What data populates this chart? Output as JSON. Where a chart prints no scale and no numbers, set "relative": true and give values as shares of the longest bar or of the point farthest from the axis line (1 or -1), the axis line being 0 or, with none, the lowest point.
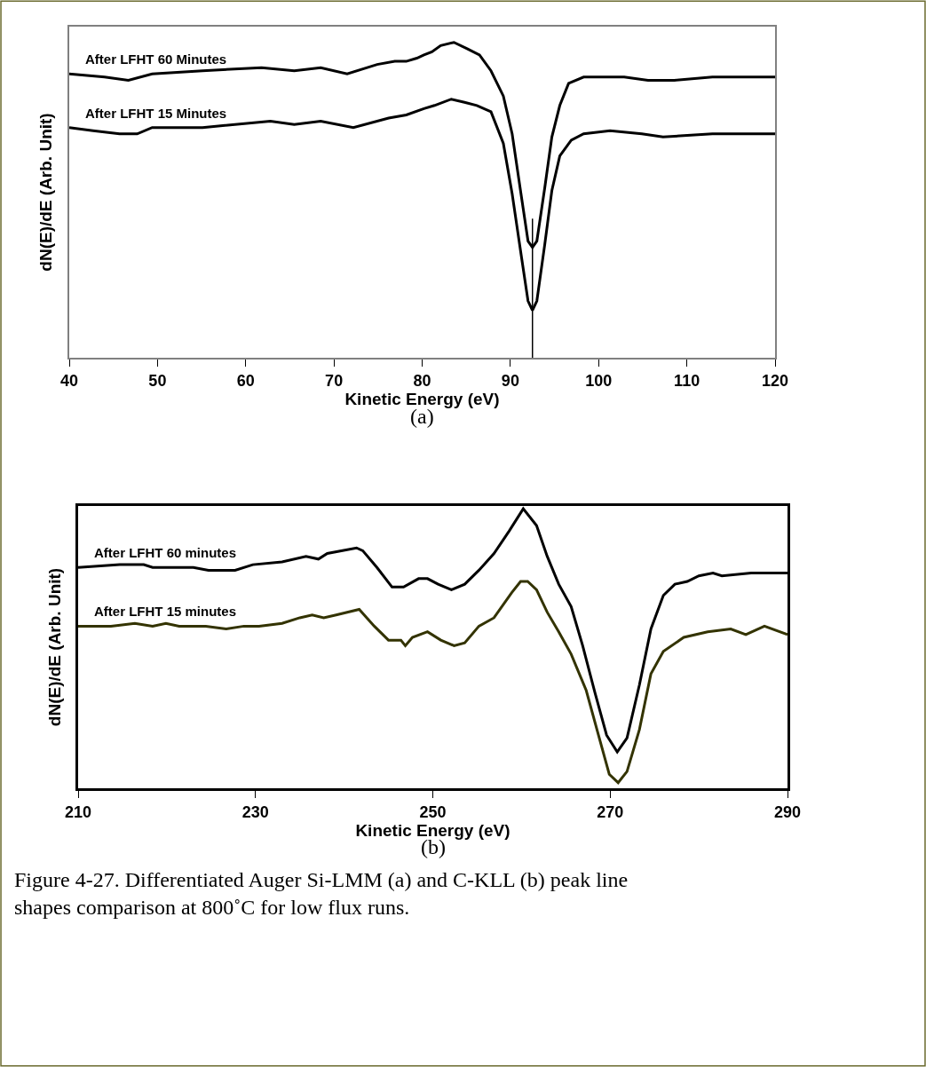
{
  "chart_data": [
    {
      "type": "line",
      "xlabel": "Kinetic Energy (eV)",
      "ylabel": "dN(E)/dE (Arb. Unit)",
      "relative": true,
      "xlim": [
        40,
        120
      ],
      "xticks": [
        40,
        50,
        60,
        70,
        80,
        90,
        100,
        110,
        120
      ],
      "legend": false,
      "marker": "none",
      "line_style": "solid",
      "ref_lines": [
        {
          "axis": "x",
          "value": 92.5,
          "color": "#000000"
        }
      ],
      "annotations": [
        "(a)"
      ],
      "series": [
        {
          "name": "After LFHT 60 Minutes",
          "color": "#000000",
          "x": [
            40,
            44,
            46.7,
            49.4,
            55.1,
            61.8,
            65.5,
            68.5,
            71.5,
            74.9,
            76.9,
            78.2,
            79.4,
            80.2,
            81.1,
            82.1,
            83.6,
            85.1,
            86.5,
            87.8,
            89.2,
            90.2,
            91.2,
            92.0,
            92.5,
            93.0,
            93.9,
            94.7,
            95.6,
            96.6,
            98.3,
            100.6,
            102.9,
            105.6,
            108.6,
            112.9,
            120
          ],
          "values": [
            0.9,
            0.89,
            0.88,
            0.9,
            0.91,
            0.92,
            0.91,
            0.92,
            0.9,
            0.93,
            0.94,
            0.94,
            0.95,
            0.96,
            0.97,
            0.99,
            1.0,
            0.98,
            0.96,
            0.91,
            0.83,
            0.71,
            0.52,
            0.37,
            0.35,
            0.37,
            0.54,
            0.7,
            0.8,
            0.87,
            0.89,
            0.89,
            0.89,
            0.88,
            0.88,
            0.89,
            0.89
          ]
        },
        {
          "name": "After LFHT 15 Minutes",
          "color": "#000000",
          "x": [
            40,
            42.7,
            45.7,
            47.7,
            49.4,
            55.1,
            62.8,
            65.5,
            68.5,
            72.2,
            76.2,
            78.2,
            80.2,
            81.4,
            83.3,
            84.8,
            86.2,
            87.8,
            89.2,
            90.2,
            91.2,
            92.0,
            92.5,
            93.0,
            93.9,
            94.7,
            95.6,
            96.9,
            98.3,
            101.3,
            104.9,
            107.3,
            112.9,
            120
          ],
          "values": [
            0.73,
            0.72,
            0.71,
            0.71,
            0.73,
            0.73,
            0.75,
            0.74,
            0.75,
            0.73,
            0.76,
            0.77,
            0.79,
            0.8,
            0.82,
            0.81,
            0.8,
            0.78,
            0.68,
            0.52,
            0.33,
            0.18,
            0.15,
            0.18,
            0.36,
            0.53,
            0.64,
            0.69,
            0.71,
            0.72,
            0.71,
            0.7,
            0.71,
            0.71
          ]
        }
      ]
    },
    {
      "type": "line",
      "xlabel": "Kinetic Energy (eV)",
      "ylabel": "dN(E)/dE (Arb. Unit)",
      "relative": true,
      "xlim": [
        210,
        290
      ],
      "xticks": [
        210,
        230,
        250,
        270,
        290
      ],
      "legend": false,
      "marker": "none",
      "line_style": "solid",
      "annotations": [
        "(b)",
        "Figure 4-27. Differentiated Auger Si-LMM (a) and C-KLL (b) peak line\nshapes comparison at 800˚C for low flux runs."
      ],
      "series": [
        {
          "name": "After LFHT 60 minutes",
          "color": "#000000",
          "x": [
            210,
            214.7,
            217.4,
            218.4,
            223.0,
            224.7,
            227.7,
            229.7,
            233.0,
            235.7,
            237.1,
            238.1,
            241.4,
            242.1,
            243.7,
            245.4,
            246.7,
            248.4,
            249.4,
            250.6,
            252.1,
            253.6,
            255.2,
            256.9,
            258.6,
            260.2,
            261.7,
            262.9,
            264.2,
            265.6,
            266.9,
            268.3,
            269.6,
            270.8,
            271.9,
            273.3,
            274.6,
            276.0,
            277.3,
            278.7,
            280.0,
            281.6,
            282.6,
            285.9,
            290
          ],
          "values": [
            0.79,
            0.8,
            0.8,
            0.79,
            0.79,
            0.78,
            0.78,
            0.8,
            0.81,
            0.83,
            0.82,
            0.84,
            0.86,
            0.85,
            0.79,
            0.72,
            0.72,
            0.75,
            0.75,
            0.73,
            0.71,
            0.73,
            0.78,
            0.84,
            0.92,
            1.0,
            0.94,
            0.83,
            0.73,
            0.65,
            0.51,
            0.34,
            0.19,
            0.13,
            0.18,
            0.37,
            0.57,
            0.69,
            0.73,
            0.74,
            0.76,
            0.77,
            0.76,
            0.77,
            0.77
          ]
        },
        {
          "name": "After LFHT 15 minutes",
          "color": "#333300",
          "x": [
            210,
            213.7,
            216.4,
            218.4,
            219.9,
            221.4,
            224.4,
            226.7,
            228.7,
            230.4,
            233.0,
            235.0,
            236.4,
            237.7,
            239.1,
            241.7,
            243.4,
            245.0,
            246.4,
            246.9,
            247.7,
            249.4,
            250.9,
            252.4,
            253.6,
            255.2,
            256.9,
            258.9,
            259.9,
            260.7,
            261.7,
            262.9,
            264.2,
            265.6,
            267.3,
            268.6,
            269.9,
            270.9,
            271.9,
            273.3,
            274.6,
            276.0,
            278.3,
            281.0,
            283.6,
            285.3,
            287.4,
            290
          ],
          "values": [
            0.58,
            0.58,
            0.59,
            0.58,
            0.59,
            0.58,
            0.58,
            0.57,
            0.58,
            0.58,
            0.59,
            0.61,
            0.62,
            0.61,
            0.62,
            0.64,
            0.58,
            0.53,
            0.53,
            0.51,
            0.54,
            0.56,
            0.53,
            0.51,
            0.52,
            0.58,
            0.61,
            0.7,
            0.74,
            0.74,
            0.71,
            0.63,
            0.56,
            0.48,
            0.35,
            0.2,
            0.05,
            0.02,
            0.06,
            0.21,
            0.41,
            0.49,
            0.54,
            0.56,
            0.57,
            0.55,
            0.58,
            0.55
          ]
        }
      ]
    }
  ]
}
